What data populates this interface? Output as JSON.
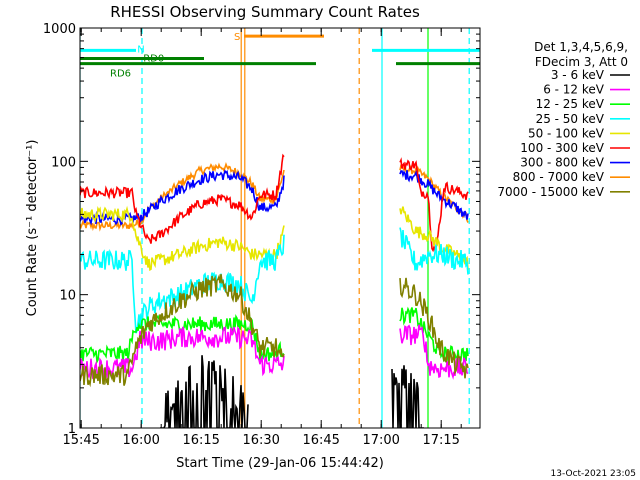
{
  "chart_data": {
    "type": "line",
    "title": "RHESSI Observing Summary Count Rates",
    "xlabel": "Start Time (29-Jan-06 15:44:42)",
    "ylabel": "Count Rate (s⁻¹ detector⁻¹)",
    "x_tick_labels": [
      "15:45",
      "16:00",
      "16:15",
      "16:30",
      "16:45",
      "17:00",
      "17:15"
    ],
    "x_tick_values_min": [
      0.3,
      15.3,
      30.3,
      45.3,
      60.3,
      75.3,
      90.3
    ],
    "y_tick_labels": [
      "1",
      "10",
      "100",
      "1000"
    ],
    "xlim_min": [
      0,
      100
    ],
    "ylim": [
      1,
      1000
    ],
    "yscale": "log",
    "timestamp": "13-Oct-2021 23:05",
    "legend": {
      "header": [
        "Det 1,3,4,5,6,9,",
        "FDecim 3, Att 0"
      ],
      "entries": [
        {
          "label": "3 - 6 keV",
          "color": "#000000"
        },
        {
          "label": "6 - 12 keV",
          "color": "#ff00ff"
        },
        {
          "label": "12 - 25 keV",
          "color": "#00ff00"
        },
        {
          "label": "25 - 50 keV",
          "color": "#00ffff"
        },
        {
          "label": "50 - 100 keV",
          "color": "#e6e600"
        },
        {
          "label": "100 - 300 keV",
          "color": "#ff0000"
        },
        {
          "label": "300 - 800 keV",
          "color": "#0000ff"
        },
        {
          "label": "800 - 7000 keV",
          "color": "#ff8c00"
        },
        {
          "label": "7000 - 15000 keV",
          "color": "#808000"
        }
      ]
    },
    "flags": [
      {
        "label": "N",
        "color": "#00ffff",
        "segments": [
          [
            0,
            14
          ],
          [
            73,
            100
          ]
        ],
        "level": 680
      },
      {
        "label": "RD0",
        "color": "#008000",
        "segments": [
          [
            0,
            31
          ]
        ],
        "level": 590
      },
      {
        "label": "RD6",
        "color": "#008000",
        "segments": [
          [
            0,
            59
          ],
          [
            79,
            100
          ]
        ],
        "level": 540
      },
      {
        "label": "S",
        "color": "#ff8c00",
        "segments": [
          [
            41,
            61
          ]
        ],
        "level": 870
      }
    ],
    "vertical_markers": [
      {
        "x": 0,
        "color": "#00ffff",
        "style": "solid"
      },
      {
        "x": 15.5,
        "color": "#00ffff",
        "style": "dashed"
      },
      {
        "x": 40.3,
        "color": "#ff8c00",
        "style": "solid"
      },
      {
        "x": 41.2,
        "color": "#ff8c00",
        "style": "solid"
      },
      {
        "x": 69.8,
        "color": "#ff8c00",
        "style": "dashed"
      },
      {
        "x": 75.5,
        "color": "#00ffff",
        "style": "solid"
      },
      {
        "x": 87.0,
        "color": "#00ff00",
        "style": "solid"
      },
      {
        "x": 97.3,
        "color": "#00ffff",
        "style": "dashed"
      }
    ],
    "series": [
      {
        "color": "#ff8c00",
        "noise": 0.03,
        "x": [
          0,
          13,
          15,
          17,
          20,
          25,
          30,
          35,
          40,
          43,
          45,
          49,
          51,
          80,
          84,
          87,
          90,
          94,
          96,
          97
        ],
        "y": [
          33,
          33,
          35,
          43,
          52,
          68,
          85,
          92,
          82,
          68,
          52,
          52,
          85,
          88,
          85,
          74,
          58,
          45,
          40,
          37
        ]
      },
      {
        "color": "#0000ff",
        "noise": 0.04,
        "x": [
          0,
          13,
          15,
          17,
          20,
          25,
          30,
          35,
          40,
          43,
          45,
          49,
          51,
          80,
          84,
          87,
          90,
          94,
          96,
          97
        ],
        "y": [
          37,
          37,
          38,
          42,
          50,
          62,
          73,
          80,
          75,
          62,
          45,
          45,
          72,
          80,
          78,
          67,
          54,
          45,
          40,
          38
        ]
      },
      {
        "color": "#ff0000",
        "noise": 0.04,
        "x": [
          0,
          13,
          14,
          17,
          20,
          25,
          30,
          35,
          40,
          43,
          45,
          47,
          49,
          51,
          80,
          84,
          85,
          87,
          88,
          89,
          91,
          94,
          96,
          97
        ],
        "y": [
          58,
          58,
          40,
          25,
          28,
          38,
          48,
          52,
          47,
          38,
          56,
          56,
          56,
          115,
          95,
          94,
          60,
          57,
          24,
          21,
          65,
          60,
          57,
          55
        ]
      },
      {
        "color": "#e6e600",
        "noise": 0.05,
        "x": [
          0,
          13,
          14,
          17,
          20,
          25,
          30,
          35,
          40,
          43,
          45,
          49,
          51,
          80,
          84,
          87,
          91,
          94,
          96,
          97
        ],
        "y": [
          40,
          40,
          28,
          17,
          18,
          20,
          23,
          25,
          23,
          20,
          20,
          20,
          30,
          45,
          30,
          28,
          22,
          20,
          18,
          17
        ]
      },
      {
        "color": "#00ffff",
        "noise": 0.08,
        "x": [
          0,
          13,
          14,
          17,
          20,
          25,
          30,
          35,
          40,
          43,
          45,
          49,
          51,
          80,
          84,
          87,
          91,
          94,
          96,
          97
        ],
        "y": [
          18,
          18,
          6,
          8,
          9,
          10,
          12,
          13,
          12,
          9,
          18,
          18,
          24,
          28,
          17,
          20,
          20,
          18,
          18,
          17
        ]
      },
      {
        "color": "#00ff00",
        "noise": 0.06,
        "x": [
          0,
          8,
          12,
          14,
          20,
          25,
          30,
          35,
          40,
          43,
          45,
          49,
          51,
          80,
          84,
          86,
          90,
          94,
          96,
          97
        ],
        "y": [
          3.6,
          3.6,
          3.6,
          6,
          6,
          6,
          6,
          6,
          6,
          6,
          3.6,
          3.6,
          4,
          7,
          7,
          5.5,
          3.6,
          3.6,
          3.6,
          3.6
        ]
      },
      {
        "color": "#ff00ff",
        "noise": 0.08,
        "x": [
          0,
          13,
          15,
          20,
          25,
          30,
          35,
          40,
          43,
          45,
          49,
          51,
          80,
          84,
          86,
          87,
          89,
          94,
          97
        ],
        "y": [
          2.8,
          2.8,
          4.5,
          4.5,
          4.8,
          4.8,
          4.8,
          4.8,
          4.5,
          3,
          3,
          3,
          5,
          5,
          5,
          3,
          2.8,
          2.8,
          2.8
        ]
      },
      {
        "color": "#808000",
        "noise": 0.08,
        "x": [
          0,
          12,
          14,
          17,
          20,
          25,
          30,
          35,
          40,
          43,
          45,
          49,
          51,
          80,
          84,
          87,
          90,
          94,
          96,
          97
        ],
        "y": [
          2.5,
          2.5,
          4,
          6,
          7,
          9,
          11,
          12,
          10,
          6,
          4,
          4,
          3,
          12,
          10,
          7,
          4,
          3,
          2.8,
          2.5
        ]
      },
      {
        "color": "#000000",
        "noise": 0.15,
        "spiky": true,
        "x": [
          20,
          22,
          25,
          28,
          30,
          33,
          35,
          38,
          40,
          42,
          78,
          80,
          83,
          86
        ],
        "y": [
          1.2,
          1.6,
          2.2,
          2.4,
          2.6,
          2.4,
          2.2,
          1.8,
          1.6,
          1.2,
          2.4,
          2.8,
          2.5,
          1.6
        ]
      }
    ]
  }
}
